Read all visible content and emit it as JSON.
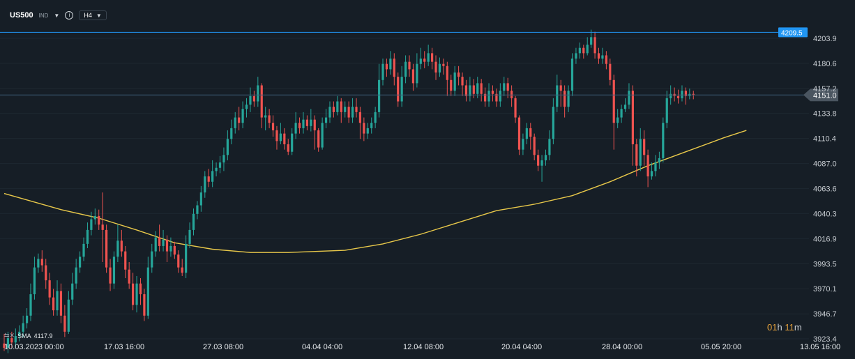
{
  "header": {
    "symbol": "US500",
    "instrument_class": "IND",
    "timeframe": "H4",
    "icons": [
      "chevron-down-icon",
      "info-icon",
      "chevron-down-icon"
    ]
  },
  "indicator": {
    "label": "SMA",
    "value": "4117.9"
  },
  "timer": {
    "hours": "01",
    "h": "h",
    "minutes": "11",
    "m": "m"
  },
  "colors": {
    "background": "#161e26",
    "up": "#26a69a",
    "down": "#ef5350",
    "sma": "#e8c84a",
    "alert_line": "#2196f3",
    "price_line": "#3a5a74"
  },
  "chart_data": {
    "type": "candlestick",
    "symbol": "US500",
    "timeframe": "H4",
    "ylim": [
      3923.4,
      4220
    ],
    "y_ticks": [
      4203.9,
      4180.6,
      4157.2,
      4133.8,
      4110.4,
      4087.0,
      4063.6,
      4040.3,
      4016.9,
      3993.5,
      3970.1,
      3946.7,
      3923.4
    ],
    "y_tick_labels": [
      "4203.9",
      "4180.6",
      "4157.2",
      "4133.8",
      "4110.4",
      "4087.0",
      "4063.6",
      "4040.3",
      "4016.9",
      "3993.5",
      "3970.1",
      "3946.7",
      "3923.4"
    ],
    "x_labels": [
      "10.03.2023  00:00",
      "17.03  16:00",
      "27.03  08:00",
      "04.04  04:00",
      "12.04  08:00",
      "20.04  04:00",
      "28.04  00:00",
      "05.05  20:00",
      "13.05  16:00"
    ],
    "alert_level": {
      "value": 4209.5,
      "label": "4209.5"
    },
    "last_price": {
      "value": 4151.0,
      "label": "4151.0"
    },
    "sma_anchors": [
      [
        0,
        4059
      ],
      [
        15,
        4044
      ],
      [
        25,
        4036
      ],
      [
        35,
        4025
      ],
      [
        45,
        4013
      ],
      [
        55,
        4007
      ],
      [
        65,
        4004
      ],
      [
        75,
        4004
      ],
      [
        90,
        4006
      ],
      [
        100,
        4012
      ],
      [
        110,
        4021
      ],
      [
        120,
        4032
      ],
      [
        130,
        4043
      ],
      [
        140,
        4049
      ],
      [
        150,
        4057
      ],
      [
        160,
        4070
      ],
      [
        170,
        4085
      ],
      [
        180,
        4098
      ],
      [
        190,
        4111
      ],
      [
        196,
        4117.9
      ]
    ],
    "candles": [
      [
        3919,
        3915,
        3928,
        3912
      ],
      [
        3915,
        3924,
        3930,
        3910
      ],
      [
        3924,
        3920,
        3930,
        3915
      ],
      [
        3920,
        3926,
        3933,
        3915
      ],
      [
        3926,
        3930,
        3936,
        3921
      ],
      [
        3930,
        3938,
        3945,
        3925
      ],
      [
        3938,
        3945,
        3952,
        3933
      ],
      [
        3945,
        3965,
        3975,
        3940
      ],
      [
        3965,
        3990,
        4000,
        3960
      ],
      [
        3990,
        3998,
        4003,
        3985
      ],
      [
        3998,
        3992,
        4006,
        3986
      ],
      [
        3992,
        3978,
        3998,
        3970
      ],
      [
        3978,
        3962,
        3985,
        3955
      ],
      [
        3962,
        3950,
        3970,
        3945
      ],
      [
        3950,
        3968,
        3978,
        3945
      ],
      [
        3968,
        3945,
        3975,
        3938
      ],
      [
        3945,
        3930,
        3955,
        3925
      ],
      [
        3930,
        3960,
        3968,
        3928
      ],
      [
        3960,
        3975,
        3985,
        3955
      ],
      [
        3975,
        3990,
        3998,
        3970
      ],
      [
        3990,
        4000,
        4005,
        3985
      ],
      [
        4000,
        4012,
        4018,
        3996
      ],
      [
        4012,
        4025,
        4032,
        4008
      ],
      [
        4025,
        4035,
        4042,
        4020
      ],
      [
        4035,
        4038,
        4045,
        4030
      ],
      [
        4038,
        4030,
        4044,
        4025
      ],
      [
        4030,
        4025,
        4060,
        3995
      ],
      [
        4025,
        3990,
        4030,
        3985
      ],
      [
        3990,
        3975,
        3998,
        3968
      ],
      [
        3975,
        4000,
        4005,
        3970
      ],
      [
        4000,
        4015,
        4030,
        3995
      ],
      [
        4015,
        4005,
        4025,
        4000
      ],
      [
        4005,
        3988,
        4010,
        3980
      ],
      [
        3988,
        3975,
        3995,
        3970
      ],
      [
        3975,
        3955,
        3985,
        3950
      ],
      [
        3955,
        3975,
        3982,
        3948
      ],
      [
        3975,
        3965,
        3980,
        3955
      ],
      [
        3965,
        3945,
        3970,
        3940
      ],
      [
        3945,
        3990,
        4000,
        3942
      ],
      [
        3990,
        4005,
        4012,
        3985
      ],
      [
        4005,
        4018,
        4024,
        4000
      ],
      [
        4018,
        4010,
        4030,
        4005
      ],
      [
        4010,
        4016,
        4025,
        4005
      ],
      [
        4016,
        4005,
        4020,
        3995
      ],
      [
        4005,
        4010,
        4018,
        4000
      ],
      [
        4010,
        4002,
        4014,
        3998
      ],
      [
        4002,
        3990,
        4006,
        3985
      ],
      [
        3990,
        3985,
        3998,
        3982
      ],
      [
        3985,
        4012,
        4020,
        3980
      ],
      [
        4012,
        4025,
        4032,
        4008
      ],
      [
        4025,
        4040,
        4045,
        4020
      ],
      [
        4040,
        4048,
        4052,
        4035
      ],
      [
        4048,
        4060,
        4066,
        4042
      ],
      [
        4060,
        4075,
        4080,
        4055
      ],
      [
        4075,
        4070,
        4082,
        4065
      ],
      [
        4070,
        4080,
        4090,
        4065
      ],
      [
        4080,
        4083,
        4088,
        4075
      ],
      [
        4083,
        4088,
        4094,
        4078
      ],
      [
        4088,
        4095,
        4102,
        4080
      ],
      [
        4095,
        4110,
        4118,
        4090
      ],
      [
        4110,
        4120,
        4128,
        4105
      ],
      [
        4120,
        4130,
        4135,
        4115
      ],
      [
        4130,
        4125,
        4140,
        4118
      ],
      [
        4125,
        4138,
        4145,
        4120
      ],
      [
        4138,
        4142,
        4148,
        4130
      ],
      [
        4142,
        4150,
        4158,
        4135
      ],
      [
        4150,
        4145,
        4155,
        4140
      ],
      [
        4145,
        4160,
        4168,
        4140
      ],
      [
        4160,
        4130,
        4162,
        4120
      ],
      [
        4130,
        4132,
        4140,
        4118
      ],
      [
        4132,
        4125,
        4138,
        4120
      ],
      [
        4125,
        4118,
        4132,
        4112
      ],
      [
        4118,
        4108,
        4122,
        4100
      ],
      [
        4108,
        4115,
        4125,
        4105
      ],
      [
        4115,
        4105,
        4120,
        4100
      ],
      [
        4105,
        4098,
        4110,
        4095
      ],
      [
        4098,
        4115,
        4120,
        4095
      ],
      [
        4115,
        4125,
        4135,
        4110
      ],
      [
        4125,
        4120,
        4130,
        4115
      ],
      [
        4120,
        4128,
        4135,
        4115
      ],
      [
        4128,
        4122,
        4132,
        4118
      ],
      [
        4122,
        4128,
        4138,
        4117
      ],
      [
        4128,
        4118,
        4132,
        4100
      ],
      [
        4118,
        4102,
        4120,
        4098
      ],
      [
        4102,
        4125,
        4130,
        4100
      ],
      [
        4125,
        4130,
        4138,
        4120
      ],
      [
        4130,
        4140,
        4145,
        4125
      ],
      [
        4140,
        4135,
        4145,
        4130
      ],
      [
        4135,
        4145,
        4150,
        4132
      ],
      [
        4145,
        4135,
        4148,
        4125
      ],
      [
        4135,
        4140,
        4145,
        4130
      ],
      [
        4140,
        4130,
        4145,
        4125
      ],
      [
        4130,
        4140,
        4148,
        4125
      ],
      [
        4140,
        4135,
        4148,
        4130
      ],
      [
        4135,
        4125,
        4140,
        4110
      ],
      [
        4125,
        4115,
        4130,
        4108
      ],
      [
        4115,
        4120,
        4125,
        4110
      ],
      [
        4120,
        4125,
        4130,
        4115
      ],
      [
        4125,
        4135,
        4140,
        4120
      ],
      [
        4135,
        4165,
        4180,
        4130
      ],
      [
        4165,
        4180,
        4185,
        4160
      ],
      [
        4180,
        4175,
        4185,
        4168
      ],
      [
        4175,
        4185,
        4192,
        4170
      ],
      [
        4185,
        4168,
        4190,
        4160
      ],
      [
        4168,
        4145,
        4172,
        4140
      ],
      [
        4145,
        4168,
        4178,
        4140
      ],
      [
        4168,
        4182,
        4188,
        4162
      ],
      [
        4182,
        4175,
        4188,
        4168
      ],
      [
        4175,
        4162,
        4180,
        4155
      ],
      [
        4162,
        4180,
        4190,
        4158
      ],
      [
        4180,
        4185,
        4195,
        4175
      ],
      [
        4185,
        4182,
        4192,
        4176
      ],
      [
        4182,
        4190,
        4198,
        4178
      ],
      [
        4190,
        4182,
        4195,
        4175
      ],
      [
        4182,
        4172,
        4188,
        4165
      ],
      [
        4172,
        4180,
        4186,
        4168
      ],
      [
        4180,
        4178,
        4185,
        4170
      ],
      [
        4178,
        4165,
        4182,
        4150
      ],
      [
        4165,
        4155,
        4170,
        4150
      ],
      [
        4155,
        4172,
        4178,
        4150
      ],
      [
        4172,
        4168,
        4178,
        4160
      ],
      [
        4168,
        4160,
        4172,
        4150
      ],
      [
        4160,
        4150,
        4165,
        4145
      ],
      [
        4150,
        4160,
        4168,
        4145
      ],
      [
        4160,
        4152,
        4166,
        4148
      ],
      [
        4152,
        4162,
        4168,
        4148
      ],
      [
        4162,
        4152,
        4166,
        4145
      ],
      [
        4152,
        4145,
        4158,
        4140
      ],
      [
        4145,
        4155,
        4162,
        4140
      ],
      [
        4155,
        4152,
        4160,
        4145
      ],
      [
        4152,
        4145,
        4157,
        4140
      ],
      [
        4145,
        4155,
        4162,
        4140
      ],
      [
        4155,
        4162,
        4168,
        4150
      ],
      [
        4162,
        4155,
        4167,
        4148
      ],
      [
        4155,
        4148,
        4160,
        4140
      ],
      [
        4148,
        4130,
        4150,
        4125
      ],
      [
        4130,
        4100,
        4132,
        4095
      ],
      [
        4100,
        4110,
        4115,
        4095
      ],
      [
        4110,
        4120,
        4125,
        4105
      ],
      [
        4120,
        4112,
        4125,
        4100
      ],
      [
        4112,
        4095,
        4115,
        4090
      ],
      [
        4095,
        4085,
        4100,
        4080
      ],
      [
        4085,
        4090,
        4095,
        4070
      ],
      [
        4090,
        4095,
        4100,
        4085
      ],
      [
        4095,
        4110,
        4118,
        4090
      ],
      [
        4110,
        4140,
        4148,
        4105
      ],
      [
        4140,
        4160,
        4170,
        4135
      ],
      [
        4160,
        4155,
        4165,
        4140
      ],
      [
        4155,
        4140,
        4160,
        4130
      ],
      [
        4140,
        4155,
        4160,
        4135
      ],
      [
        4155,
        4185,
        4190,
        4150
      ],
      [
        4185,
        4190,
        4195,
        4180
      ],
      [
        4190,
        4195,
        4200,
        4185
      ],
      [
        4195,
        4190,
        4198,
        4185
      ],
      [
        4190,
        4198,
        4205,
        4188
      ],
      [
        4198,
        4205,
        4212,
        4195
      ],
      [
        4205,
        4190,
        4210,
        4185
      ],
      [
        4190,
        4185,
        4195,
        4180
      ],
      [
        4185,
        4188,
        4195,
        4180
      ],
      [
        4188,
        4180,
        4192,
        4175
      ],
      [
        4180,
        4165,
        4185,
        4160
      ],
      [
        4165,
        4125,
        4170,
        4100
      ],
      [
        4125,
        4130,
        4138,
        4120
      ],
      [
        4130,
        4138,
        4142,
        4125
      ],
      [
        4138,
        4142,
        4148,
        4135
      ],
      [
        4142,
        4155,
        4162,
        4138
      ],
      [
        4155,
        4105,
        4160,
        4085
      ],
      [
        4105,
        4085,
        4110,
        4075
      ],
      [
        4085,
        4110,
        4120,
        4080
      ],
      [
        4110,
        4095,
        4118,
        4085
      ],
      [
        4095,
        4075,
        4100,
        4065
      ],
      [
        4075,
        4080,
        4088,
        4072
      ],
      [
        4080,
        4088,
        4095,
        4075
      ],
      [
        4088,
        4092,
        4098,
        4082
      ],
      [
        4092,
        4125,
        4130,
        4088
      ],
      [
        4125,
        4148,
        4155,
        4120
      ],
      [
        4148,
        4152,
        4160,
        4142
      ],
      [
        4152,
        4150,
        4158,
        4145
      ],
      [
        4150,
        4148,
        4156,
        4143
      ],
      [
        4148,
        4155,
        4160,
        4145
      ],
      [
        4155,
        4150,
        4158,
        4142
      ],
      [
        4150,
        4152,
        4157,
        4147
      ],
      [
        4152,
        4151,
        4155,
        4147
      ]
    ]
  }
}
